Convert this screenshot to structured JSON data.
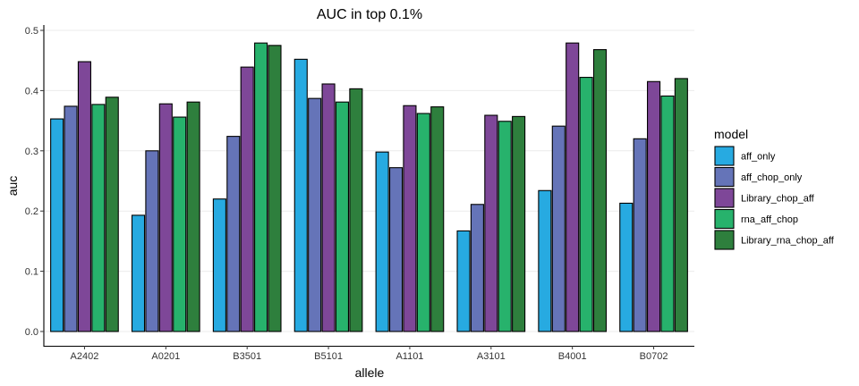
{
  "chart_data": {
    "type": "bar",
    "title": "AUC in top 0.1%",
    "xlabel": "allele",
    "ylabel": "auc",
    "ylim": [
      0,
      0.5
    ],
    "yticks": [
      0.0,
      0.1,
      0.2,
      0.3,
      0.4,
      0.5
    ],
    "ytick_labels": [
      "0.0",
      "0.1",
      "0.2",
      "0.3",
      "0.4",
      "0.5"
    ],
    "grid": true,
    "categories": [
      "A2402",
      "A0201",
      "B3501",
      "B5101",
      "A1101",
      "A3101",
      "B4001",
      "B0702"
    ],
    "legend": {
      "title": "model",
      "position": "right"
    },
    "series": [
      {
        "name": "aff_only",
        "color": "#27aae1",
        "values": [
          0.353,
          0.193,
          0.22,
          0.452,
          0.298,
          0.167,
          0.234,
          0.213
        ]
      },
      {
        "name": "aff_chop_only",
        "color": "#6574b8",
        "values": [
          0.374,
          0.3,
          0.324,
          0.387,
          0.272,
          0.211,
          0.341,
          0.32
        ]
      },
      {
        "name": "Library_chop_aff",
        "color": "#7e4798",
        "values": [
          0.448,
          0.378,
          0.439,
          0.411,
          0.375,
          0.359,
          0.479,
          0.415
        ]
      },
      {
        "name": "rna_aff_chop",
        "color": "#27b26c",
        "values": [
          0.377,
          0.356,
          0.479,
          0.381,
          0.362,
          0.349,
          0.422,
          0.391
        ]
      },
      {
        "name": "Library_rna_chop_aff",
        "color": "#2e7f3d",
        "values": [
          0.389,
          0.381,
          0.475,
          0.403,
          0.373,
          0.357,
          0.468,
          0.42
        ]
      }
    ]
  }
}
